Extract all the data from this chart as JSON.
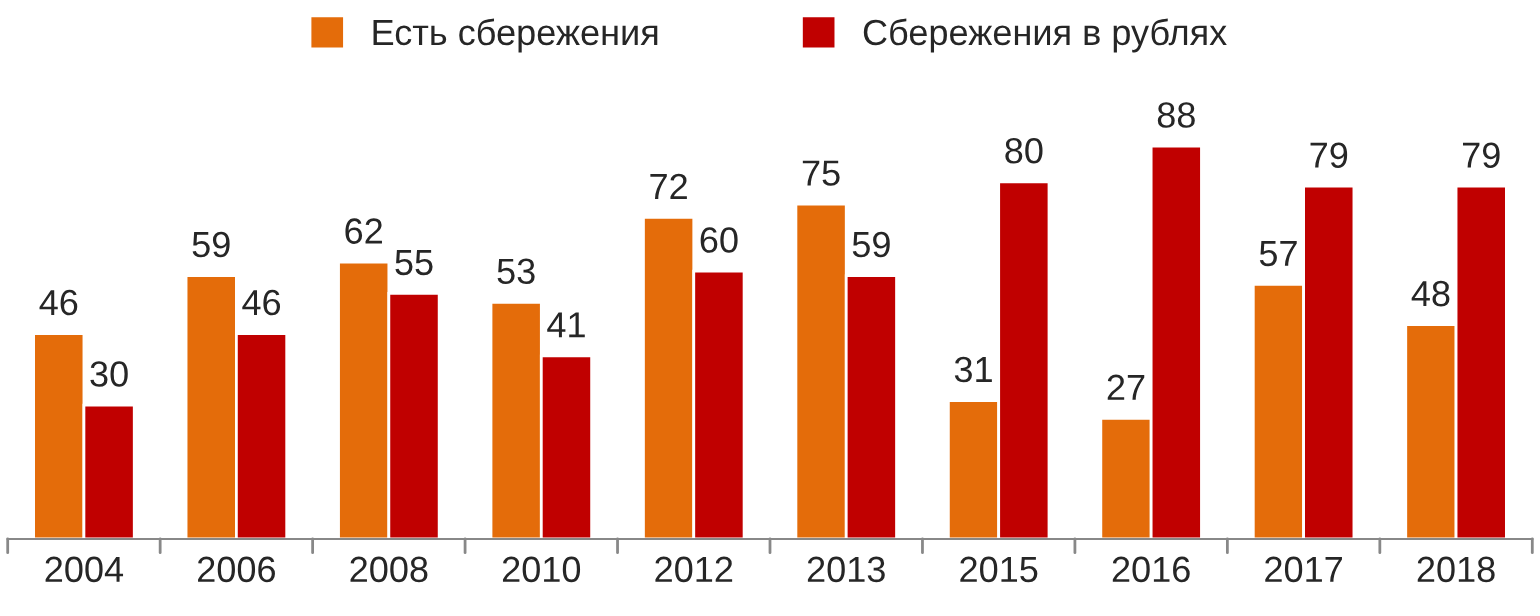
{
  "chart_data": {
    "type": "bar",
    "categories": [
      "2004",
      "2006",
      "2008",
      "2010",
      "2012",
      "2013",
      "2015",
      "2016",
      "2017",
      "2018"
    ],
    "series": [
      {
        "name": "Есть сбережения",
        "color": "#e46c0a",
        "values": [
          46,
          59,
          62,
          53,
          72,
          75,
          31,
          27,
          57,
          48
        ]
      },
      {
        "name": "Сбережения в рублях",
        "color": "#c00000",
        "values": [
          30,
          46,
          55,
          41,
          60,
          59,
          80,
          88,
          79,
          79
        ]
      }
    ],
    "data_labels": true,
    "legend": "top",
    "grid": false
  }
}
